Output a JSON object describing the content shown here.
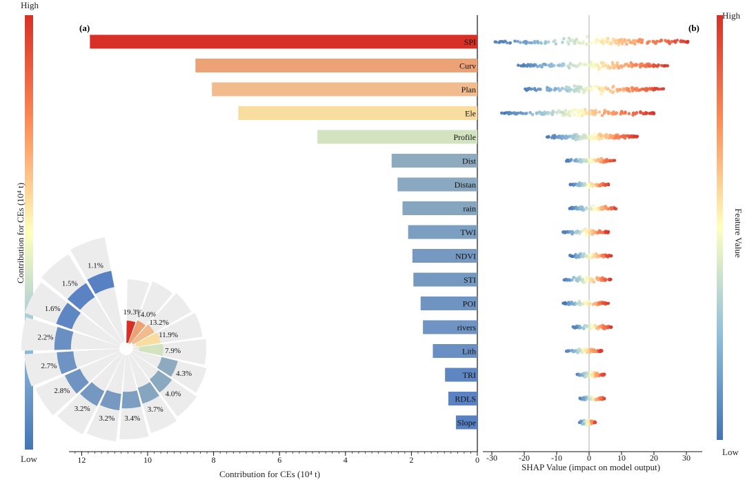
{
  "chart_data": [
    {
      "type": "bar",
      "panel": "(a)",
      "orientation": "horizontal",
      "categories": [
        "SPI",
        "Curv",
        "Plan",
        "Ele",
        "Profile",
        "Dist",
        "Distan",
        "rain",
        "TWI",
        "NDVI",
        "STI",
        "POI",
        "rivers",
        "Lith",
        "TRI",
        "RDLS",
        "Slope"
      ],
      "values": [
        11.75,
        8.55,
        8.05,
        7.25,
        4.85,
        2.6,
        2.42,
        2.27,
        2.1,
        1.97,
        1.94,
        1.72,
        1.65,
        1.35,
        0.98,
        0.88,
        0.65
      ],
      "colors": [
        "#d73027",
        "#eda275",
        "#f2bb8d",
        "#f9dca0",
        "#d3e3c0",
        "#8eaabf",
        "#8aa8c0",
        "#86a6c0",
        "#7c9fc1",
        "#7799c1",
        "#7598c1",
        "#7094c2",
        "#6f93c2",
        "#6a8fc2",
        "#5e86c3",
        "#5b83c3",
        "#5781c3"
      ],
      "xlabel": "Contribution for CEs (10⁴ t)",
      "xticks": [
        12,
        10,
        8,
        6,
        4,
        2,
        0
      ],
      "xlim": [
        12.5,
        0
      ],
      "colorbar": {
        "label": "Contribution for CEs (10⁴ t)",
        "high": "High",
        "low": "Low"
      }
    },
    {
      "type": "pie",
      "subtype": "rose",
      "inset_of": "(a)",
      "labels": [
        "19.3%",
        "14.0%",
        "13.2%",
        "11.9%",
        "7.9%",
        "4.3%",
        "4.0%",
        "3.7%",
        "3.4%",
        "3.2%",
        "3.2%",
        "2.8%",
        "2.7%",
        "2.2%",
        "1.6%",
        "1.5%",
        "1.1%"
      ],
      "values": [
        19.3,
        14.0,
        13.2,
        11.9,
        7.9,
        4.3,
        4.0,
        3.7,
        3.4,
        3.2,
        3.2,
        2.8,
        2.7,
        2.2,
        1.6,
        1.5,
        1.1
      ]
    },
    {
      "type": "scatter",
      "subtype": "beeswarm",
      "panel": "(b)",
      "xlabel": "SHAP Value (impact on model output)",
      "xticks": [
        -30,
        -20,
        -10,
        0,
        10,
        20,
        30
      ],
      "xlim": [
        -30,
        35
      ],
      "features": [
        "SPI",
        "Curv",
        "Plan",
        "Ele",
        "Profile",
        "Dist",
        "Distan",
        "rain",
        "TWI",
        "NDVI",
        "STI",
        "POI",
        "rivers",
        "Lith",
        "TRI",
        "RDLS",
        "Slope"
      ],
      "shap_range": [
        [
          -29,
          32
        ],
        [
          -22,
          25
        ],
        [
          -20,
          23
        ],
        [
          -27,
          20
        ],
        [
          -13,
          15
        ],
        [
          -7,
          8
        ],
        [
          -6,
          6
        ],
        [
          -6,
          9
        ],
        [
          -8,
          6
        ],
        [
          -6,
          7
        ],
        [
          -8,
          7
        ],
        [
          -8,
          6
        ],
        [
          -5,
          7
        ],
        [
          -7,
          4
        ],
        [
          -4,
          5
        ],
        [
          -3,
          5
        ],
        [
          -3,
          2
        ]
      ],
      "colorbar": {
        "label": "Feature Value",
        "high": "High",
        "low": "Low"
      }
    }
  ]
}
